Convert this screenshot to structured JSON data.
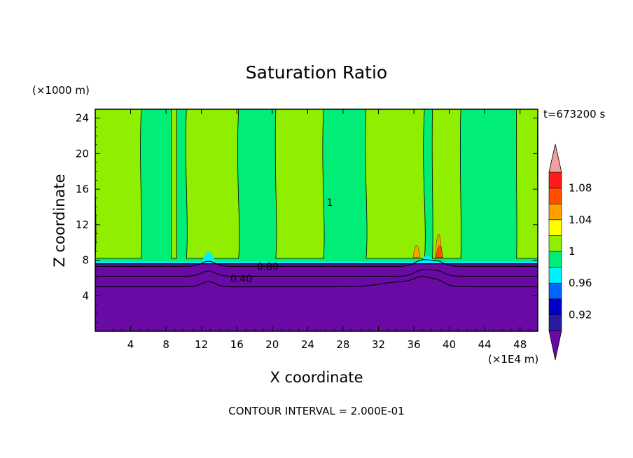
{
  "chart_data": {
    "type": "heatmap",
    "title": "Saturation Ratio",
    "time_label": "t=673200 s",
    "ylabel": "Z coordinate",
    "xlabel": "X coordinate",
    "y_unit": "(×1000 m)",
    "x_unit": "(×1E4 m)",
    "xlim": [
      0,
      50
    ],
    "ylim": [
      0,
      25
    ],
    "x_ticks": [
      4,
      8,
      12,
      16,
      20,
      24,
      28,
      32,
      36,
      40,
      44,
      48
    ],
    "y_ticks": [
      4,
      8,
      12,
      16,
      20,
      24
    ],
    "x_tick_labels": [
      "4",
      "8",
      "12",
      "16",
      "20",
      "24",
      "28",
      "32",
      "36",
      "40",
      "44",
      "48"
    ],
    "y_tick_labels": [
      "4",
      "8",
      "12",
      "16",
      "20",
      "24"
    ],
    "footer": "CONTOUR INTERVAL = 2.000E-01",
    "contour_labels": [
      {
        "text": "0.80",
        "x": 19.5,
        "y": 7.3
      },
      {
        "text": "0.40",
        "x": 16.5,
        "y": 5.9
      },
      {
        "text": "1",
        "x": 26.5,
        "y": 14.5
      }
    ],
    "colorbar": {
      "levels": [
        0.9,
        0.92,
        0.94,
        0.96,
        0.98,
        1.0,
        1.02,
        1.04,
        1.06,
        1.08,
        1.1
      ],
      "colors": [
        "#6a0aa5",
        "#2b1aa0",
        "#0000c8",
        "#0064ff",
        "#00f0ff",
        "#00ee77",
        "#90ee00",
        "#ffff00",
        "#ffa000",
        "#ff5000",
        "#ff1a1a",
        "#f0a0a0"
      ],
      "tick_labels": [
        "0.92",
        "0.96",
        "1",
        "1.04",
        "1.08"
      ],
      "tick_values": [
        0.92,
        0.96,
        1.0,
        1.04,
        1.08
      ]
    },
    "base_layer": {
      "color": "#6a0aa5",
      "z_top": 7.6,
      "description_value": "below 0.90"
    },
    "background_color": "#00ee77",
    "light_green_bands": [
      {
        "x0": 0,
        "x1": 5.2
      },
      {
        "x0": 8.6,
        "x1": 9.2
      },
      {
        "x0": 10.3,
        "x1": 16.2
      },
      {
        "x0": 20.4,
        "x1": 25.8
      },
      {
        "x0": 30.6,
        "x1": 37.2
      },
      {
        "x0": 38.1,
        "x1": 41.3
      },
      {
        "x0": 47.6,
        "x1": 50
      }
    ],
    "hotspots": [
      {
        "x": 36.3,
        "z": 9.0,
        "height": 1.3,
        "value": 1.04
      },
      {
        "x": 38.8,
        "z": 9.5,
        "height": 3.3,
        "value": 1.04
      },
      {
        "x": 38.9,
        "z": 8.8,
        "height": 1.4,
        "value": 1.06
      }
    ],
    "cyan_bumps": [
      {
        "x": 12.8,
        "height": 2.2
      },
      {
        "x": 37.5,
        "height": 1.4
      }
    ],
    "contour_lines_z": [
      7.3,
      6.2,
      5.0
    ]
  }
}
